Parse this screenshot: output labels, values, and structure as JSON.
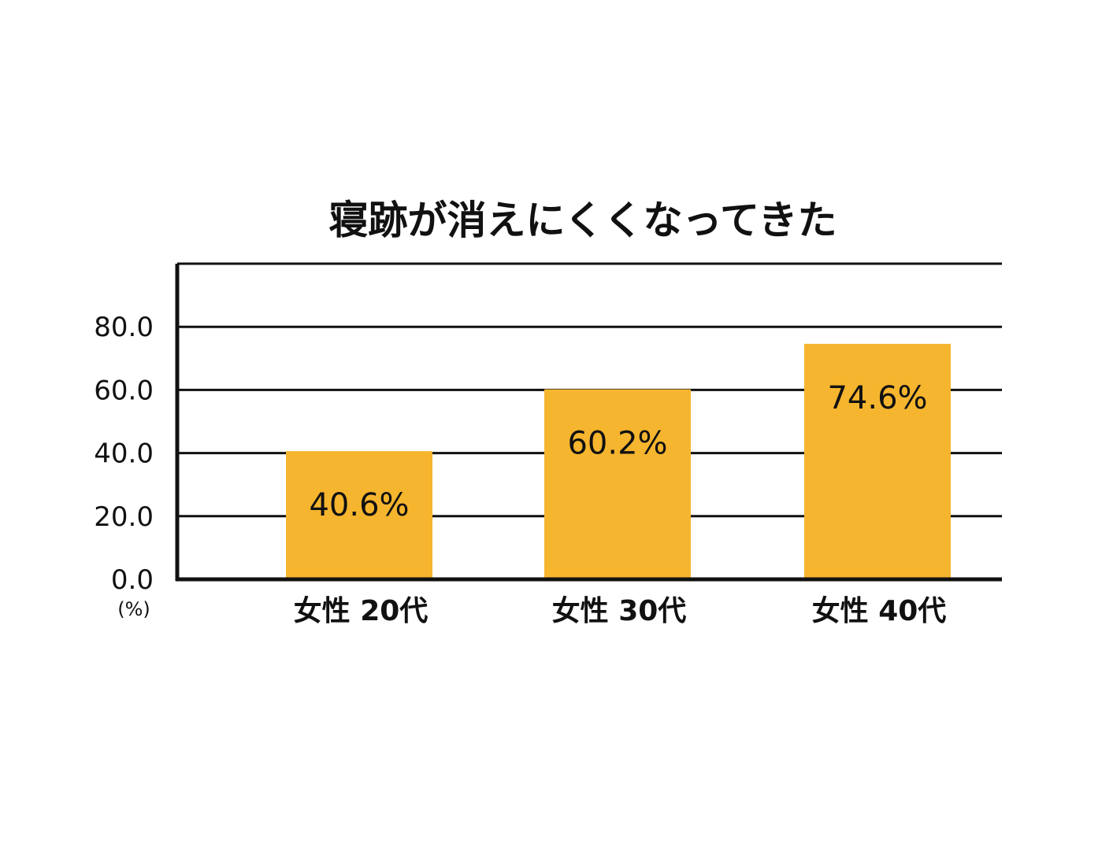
{
  "chart_data": {
    "type": "bar",
    "title": "寝跡が消えにくくなってきた",
    "categories": [
      "女性 20代",
      "女性 30代",
      "女性 40代"
    ],
    "values": [
      40.6,
      60.2,
      74.6
    ],
    "data_labels": [
      "40.6%",
      "60.2%",
      "74.6%"
    ],
    "y_ticks": [
      "0.0",
      "20.0",
      "40.0",
      "60.0",
      "80.0"
    ],
    "y_unit": "(%)",
    "ylim": [
      0,
      100
    ],
    "grid": true,
    "bar_color": "#F6B52E"
  }
}
